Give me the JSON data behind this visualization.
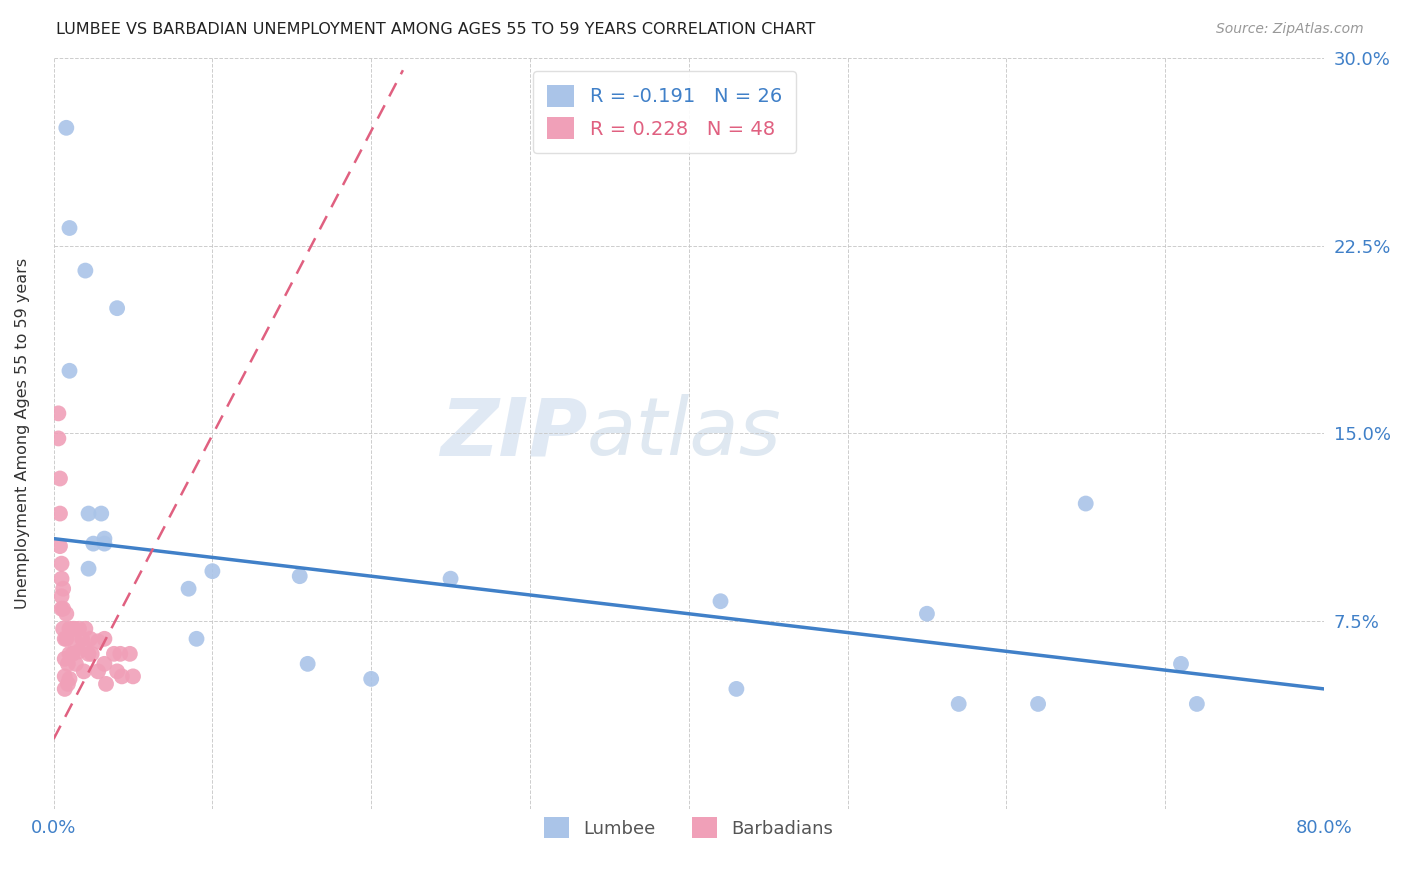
{
  "title": "LUMBEE VS BARBADIAN UNEMPLOYMENT AMONG AGES 55 TO 59 YEARS CORRELATION CHART",
  "source": "Source: ZipAtlas.com",
  "ylabel": "Unemployment Among Ages 55 to 59 years",
  "xlim": [
    0.0,
    0.8
  ],
  "ylim": [
    0.0,
    0.3
  ],
  "xticks": [
    0.0,
    0.1,
    0.2,
    0.3,
    0.4,
    0.5,
    0.6,
    0.7,
    0.8
  ],
  "yticks": [
    0.0,
    0.075,
    0.15,
    0.225,
    0.3
  ],
  "lumbee_R": "-0.191",
  "lumbee_N": "26",
  "barbadian_R": "0.228",
  "barbadian_N": "48",
  "lumbee_color": "#aac4e8",
  "barbadian_color": "#f0a0b8",
  "lumbee_line_color": "#4080c8",
  "barbadian_line_color": "#e06080",
  "watermark_text": "ZIP",
  "watermark_text2": "atlas",
  "lumbee_x": [
    0.008,
    0.01,
    0.02,
    0.04,
    0.01,
    0.022,
    0.03,
    0.032,
    0.025,
    0.022,
    0.032,
    0.085,
    0.09,
    0.1,
    0.155,
    0.16,
    0.2,
    0.25,
    0.42,
    0.43,
    0.55,
    0.57,
    0.65,
    0.71,
    0.72,
    0.62
  ],
  "lumbee_y": [
    0.272,
    0.232,
    0.215,
    0.2,
    0.175,
    0.118,
    0.118,
    0.108,
    0.106,
    0.096,
    0.106,
    0.088,
    0.068,
    0.095,
    0.093,
    0.058,
    0.052,
    0.092,
    0.083,
    0.048,
    0.078,
    0.042,
    0.122,
    0.058,
    0.042,
    0.042
  ],
  "barbadian_x": [
    0.003,
    0.003,
    0.004,
    0.004,
    0.004,
    0.005,
    0.005,
    0.005,
    0.005,
    0.006,
    0.006,
    0.006,
    0.007,
    0.007,
    0.007,
    0.007,
    0.008,
    0.008,
    0.009,
    0.009,
    0.01,
    0.01,
    0.01,
    0.012,
    0.012,
    0.013,
    0.014,
    0.014,
    0.016,
    0.016,
    0.018,
    0.019,
    0.019,
    0.02,
    0.022,
    0.023,
    0.024,
    0.028,
    0.028,
    0.032,
    0.032,
    0.033,
    0.038,
    0.04,
    0.042,
    0.043,
    0.048,
    0.05
  ],
  "barbadian_y": [
    0.158,
    0.148,
    0.132,
    0.118,
    0.105,
    0.098,
    0.092,
    0.085,
    0.08,
    0.088,
    0.08,
    0.072,
    0.068,
    0.06,
    0.053,
    0.048,
    0.078,
    0.068,
    0.058,
    0.05,
    0.072,
    0.062,
    0.052,
    0.072,
    0.062,
    0.072,
    0.067,
    0.058,
    0.072,
    0.063,
    0.068,
    0.065,
    0.055,
    0.072,
    0.062,
    0.068,
    0.062,
    0.067,
    0.055,
    0.068,
    0.058,
    0.05,
    0.062,
    0.055,
    0.062,
    0.053,
    0.062,
    0.053
  ],
  "lumbee_line_x0": 0.0,
  "lumbee_line_y0": 0.108,
  "lumbee_line_x1": 0.8,
  "lumbee_line_y1": 0.048,
  "barbadian_line_x0": 0.0,
  "barbadian_line_y0": 0.028,
  "barbadian_line_x1": 0.22,
  "barbadian_line_y1": 0.295
}
